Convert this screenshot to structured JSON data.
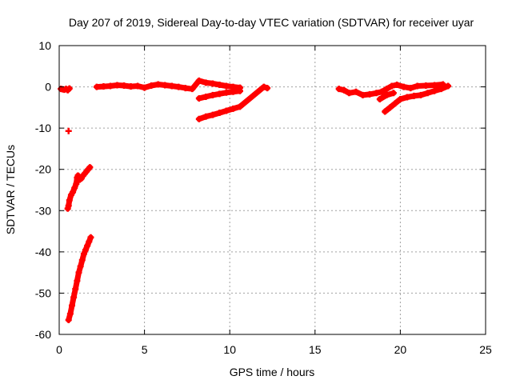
{
  "chart_data": {
    "type": "scatter",
    "title": "Day 207 of 2019, Sidereal Day-to-day VTEC variation (SDTVAR) for receiver uyar",
    "xlabel": "GPS time / hours",
    "ylabel": "SDTVAR / TECUs",
    "xlim": [
      0,
      25
    ],
    "ylim": [
      -60,
      10
    ],
    "xticks": [
      "0",
      "5",
      "10",
      "15",
      "20",
      "25"
    ],
    "yticks": [
      "10",
      "0",
      "-10",
      "-20",
      "-30",
      "-40",
      "-50",
      "-60"
    ],
    "grid": true,
    "legend": "none",
    "marker": "+",
    "color": "#ff0000",
    "points": [
      {
        "x": 0.1,
        "y": -0.5
      },
      {
        "x": 0.2,
        "y": -0.6
      },
      {
        "x": 0.3,
        "y": -0.7
      },
      {
        "x": 0.4,
        "y": -0.5
      },
      {
        "x": 0.5,
        "y": -0.8
      },
      {
        "x": 0.6,
        "y": -0.4
      },
      {
        "x": 0.55,
        "y": -10.7
      },
      {
        "x": 0.5,
        "y": -29.5
      },
      {
        "x": 0.55,
        "y": -28.8
      },
      {
        "x": 0.6,
        "y": -27.5
      },
      {
        "x": 0.7,
        "y": -26.2
      },
      {
        "x": 0.8,
        "y": -25.5
      },
      {
        "x": 0.9,
        "y": -24.5
      },
      {
        "x": 1.0,
        "y": -23.5
      },
      {
        "x": 1.05,
        "y": -22.0
      },
      {
        "x": 1.1,
        "y": -21.5
      },
      {
        "x": 1.2,
        "y": -22.5
      },
      {
        "x": 1.3,
        "y": -22.2
      },
      {
        "x": 1.4,
        "y": -21.5
      },
      {
        "x": 1.5,
        "y": -21.0
      },
      {
        "x": 1.6,
        "y": -20.5
      },
      {
        "x": 1.7,
        "y": -20.0
      },
      {
        "x": 1.8,
        "y": -19.5
      },
      {
        "x": 0.55,
        "y": -56.5
      },
      {
        "x": 0.65,
        "y": -55.0
      },
      {
        "x": 0.75,
        "y": -53.0
      },
      {
        "x": 0.85,
        "y": -51.0
      },
      {
        "x": 0.95,
        "y": -49.0
      },
      {
        "x": 1.05,
        "y": -47.0
      },
      {
        "x": 1.15,
        "y": -45.0
      },
      {
        "x": 1.25,
        "y": -43.5
      },
      {
        "x": 1.35,
        "y": -42.0
      },
      {
        "x": 1.45,
        "y": -40.5
      },
      {
        "x": 1.55,
        "y": -39.5
      },
      {
        "x": 1.65,
        "y": -38.5
      },
      {
        "x": 1.75,
        "y": -37.5
      },
      {
        "x": 1.85,
        "y": -36.5
      },
      {
        "x": 2.2,
        "y": 0.0
      },
      {
        "x": 2.6,
        "y": 0.1
      },
      {
        "x": 3.0,
        "y": 0.2
      },
      {
        "x": 3.4,
        "y": 0.4
      },
      {
        "x": 3.8,
        "y": 0.3
      },
      {
        "x": 4.2,
        "y": 0.1
      },
      {
        "x": 4.6,
        "y": 0.2
      },
      {
        "x": 5.0,
        "y": -0.2
      },
      {
        "x": 5.4,
        "y": 0.3
      },
      {
        "x": 5.8,
        "y": 0.6
      },
      {
        "x": 6.2,
        "y": 0.4
      },
      {
        "x": 6.6,
        "y": 0.2
      },
      {
        "x": 7.0,
        "y": 0.0
      },
      {
        "x": 7.4,
        "y": -0.3
      },
      {
        "x": 7.8,
        "y": -0.5
      },
      {
        "x": 8.2,
        "y": 1.5
      },
      {
        "x": 8.6,
        "y": 1.0
      },
      {
        "x": 9.0,
        "y": 0.8
      },
      {
        "x": 9.4,
        "y": 0.5
      },
      {
        "x": 9.8,
        "y": 0.2
      },
      {
        "x": 10.2,
        "y": 0.0
      },
      {
        "x": 10.6,
        "y": -0.2
      },
      {
        "x": 8.2,
        "y": -2.8
      },
      {
        "x": 8.6,
        "y": -2.4
      },
      {
        "x": 9.0,
        "y": -2.0
      },
      {
        "x": 9.4,
        "y": -1.7
      },
      {
        "x": 9.8,
        "y": -1.4
      },
      {
        "x": 10.2,
        "y": -1.2
      },
      {
        "x": 10.6,
        "y": -1.0
      },
      {
        "x": 8.2,
        "y": -7.8
      },
      {
        "x": 8.6,
        "y": -7.2
      },
      {
        "x": 9.0,
        "y": -6.8
      },
      {
        "x": 9.4,
        "y": -6.3
      },
      {
        "x": 9.8,
        "y": -5.8
      },
      {
        "x": 10.2,
        "y": -5.3
      },
      {
        "x": 10.6,
        "y": -4.8
      },
      {
        "x": 12.0,
        "y": 0.0
      },
      {
        "x": 12.2,
        "y": -0.3
      },
      {
        "x": 16.4,
        "y": -0.5
      },
      {
        "x": 16.7,
        "y": -0.8
      },
      {
        "x": 17.0,
        "y": -1.5
      },
      {
        "x": 17.4,
        "y": -1.2
      },
      {
        "x": 17.8,
        "y": -2.0
      },
      {
        "x": 18.2,
        "y": -1.8
      },
      {
        "x": 18.6,
        "y": -1.5
      },
      {
        "x": 18.9,
        "y": -1.2
      },
      {
        "x": 19.2,
        "y": -0.5
      },
      {
        "x": 19.5,
        "y": 0.2
      },
      {
        "x": 19.8,
        "y": 0.5
      },
      {
        "x": 20.2,
        "y": 0.0
      },
      {
        "x": 20.6,
        "y": -0.3
      },
      {
        "x": 21.0,
        "y": 0.2
      },
      {
        "x": 21.5,
        "y": 0.3
      },
      {
        "x": 22.0,
        "y": 0.4
      },
      {
        "x": 22.5,
        "y": 0.6
      },
      {
        "x": 18.8,
        "y": -3.0
      },
      {
        "x": 19.2,
        "y": -2.0
      },
      {
        "x": 19.6,
        "y": -1.5
      },
      {
        "x": 19.1,
        "y": -6.0
      },
      {
        "x": 19.4,
        "y": -5.0
      },
      {
        "x": 19.7,
        "y": -4.0
      },
      {
        "x": 20.0,
        "y": -3.0
      },
      {
        "x": 20.4,
        "y": -2.5
      },
      {
        "x": 20.8,
        "y": -2.2
      },
      {
        "x": 21.2,
        "y": -2.0
      },
      {
        "x": 21.6,
        "y": -1.5
      },
      {
        "x": 22.0,
        "y": -1.0
      },
      {
        "x": 22.4,
        "y": -0.5
      },
      {
        "x": 22.8,
        "y": 0.2
      }
    ]
  }
}
